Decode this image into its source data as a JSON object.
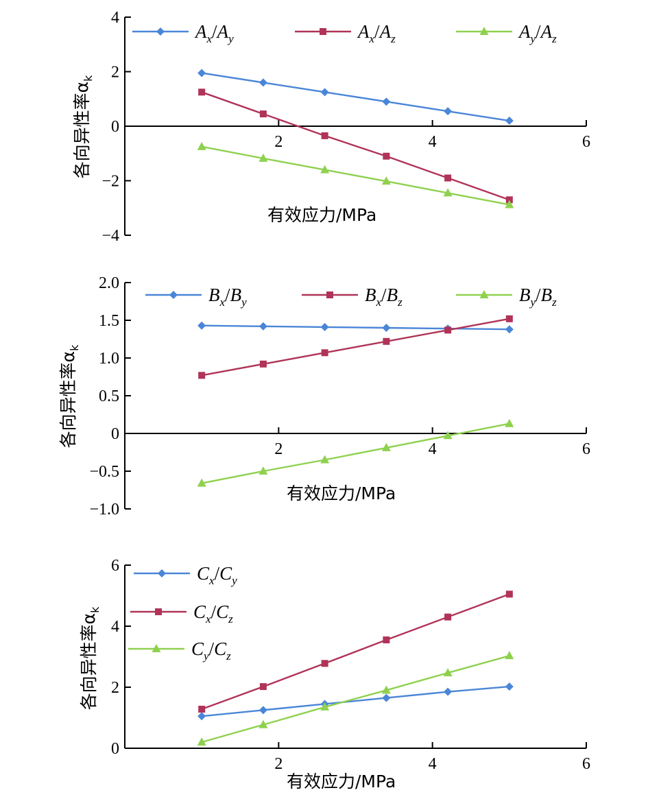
{
  "colors": {
    "blue": "#4a86d8",
    "red": "#b03358",
    "green": "#8fd14f",
    "axis": "#000000"
  },
  "chart_data": [
    {
      "type": "line",
      "xlabel": "有效应力/MPa",
      "ylabel": "各向异性率α",
      "ylabel_sub": "k",
      "xlim": [
        0,
        6
      ],
      "ylim": [
        -4,
        4
      ],
      "xticks": [
        "2",
        "4",
        "6"
      ],
      "yticks": [
        "4",
        "2",
        "0",
        "−2",
        "−4"
      ],
      "x": [
        1,
        1.8,
        2.6,
        3.4,
        4.2,
        5
      ],
      "legend_position": "top",
      "series": [
        {
          "name": "Ax/Ay",
          "letter1": "A",
          "sub1": "x",
          "letter2": "A",
          "sub2": "y",
          "color": "#4a86d8",
          "marker": "diamond",
          "values": [
            1.95,
            1.6,
            1.25,
            0.9,
            0.55,
            0.2
          ]
        },
        {
          "name": "Ax/Az",
          "letter1": "A",
          "sub1": "x",
          "letter2": "A",
          "sub2": "z",
          "color": "#b03358",
          "marker": "square",
          "values": [
            1.25,
            0.45,
            -0.35,
            -1.1,
            -1.9,
            -2.7
          ]
        },
        {
          "name": "Ay/Az",
          "letter1": "A",
          "sub1": "y",
          "letter2": "A",
          "sub2": "z",
          "color": "#8fd14f",
          "marker": "triangle",
          "values": [
            -0.75,
            -1.18,
            -1.6,
            -2.02,
            -2.45,
            -2.88
          ]
        }
      ]
    },
    {
      "type": "line",
      "xlabel": "有效应力/MPa",
      "ylabel": "各向异性率α",
      "ylabel_sub": "k",
      "xlim": [
        0,
        6
      ],
      "ylim": [
        -1,
        2
      ],
      "xticks": [
        "2",
        "4",
        "6"
      ],
      "yticks": [
        "2.0",
        "1.5",
        "1.0",
        "0.5",
        "0",
        "−0.5",
        "−1.0"
      ],
      "x": [
        1,
        1.8,
        2.6,
        3.4,
        4.2,
        5
      ],
      "legend_position": "top",
      "series": [
        {
          "name": "Bx/By",
          "letter1": "B",
          "sub1": "x",
          "letter2": "B",
          "sub2": "y",
          "color": "#4a86d8",
          "marker": "diamond",
          "values": [
            1.43,
            1.42,
            1.41,
            1.4,
            1.39,
            1.38
          ]
        },
        {
          "name": "Bx/Bz",
          "letter1": "B",
          "sub1": "x",
          "letter2": "B",
          "sub2": "z",
          "color": "#b03358",
          "marker": "square",
          "values": [
            0.77,
            0.92,
            1.07,
            1.22,
            1.37,
            1.52
          ]
        },
        {
          "name": "By/Bz",
          "letter1": "B",
          "sub1": "y",
          "letter2": "B",
          "sub2": "z",
          "color": "#8fd14f",
          "marker": "triangle",
          "values": [
            -0.66,
            -0.5,
            -0.35,
            -0.19,
            -0.03,
            0.13
          ]
        }
      ]
    },
    {
      "type": "line",
      "xlabel": "有效应力/MPa",
      "ylabel": "各向异性率α",
      "ylabel_sub": "k",
      "xlim": [
        0,
        6
      ],
      "ylim": [
        0,
        6
      ],
      "xticks": [
        "2",
        "4",
        "6"
      ],
      "yticks": [
        "6",
        "4",
        "2",
        "0"
      ],
      "x": [
        1,
        1.8,
        2.6,
        3.4,
        4.2,
        5
      ],
      "legend_position": "top-left",
      "series": [
        {
          "name": "Cx/Cy",
          "letter1": "C",
          "sub1": "x",
          "letter2": "C",
          "sub2": "y",
          "color": "#4a86d8",
          "marker": "diamond",
          "values": [
            1.05,
            1.25,
            1.45,
            1.65,
            1.85,
            2.02
          ]
        },
        {
          "name": "Cx/Cz",
          "letter1": "C",
          "sub1": "x",
          "letter2": "C",
          "sub2": "z",
          "color": "#b03358",
          "marker": "square",
          "values": [
            1.28,
            2.02,
            2.78,
            3.55,
            4.3,
            5.05
          ]
        },
        {
          "name": "Cy/Cz",
          "letter1": "C",
          "sub1": "y",
          "letter2": "C",
          "sub2": "z",
          "color": "#8fd14f",
          "marker": "triangle",
          "values": [
            0.2,
            0.77,
            1.35,
            1.9,
            2.47,
            3.03
          ]
        }
      ]
    }
  ]
}
